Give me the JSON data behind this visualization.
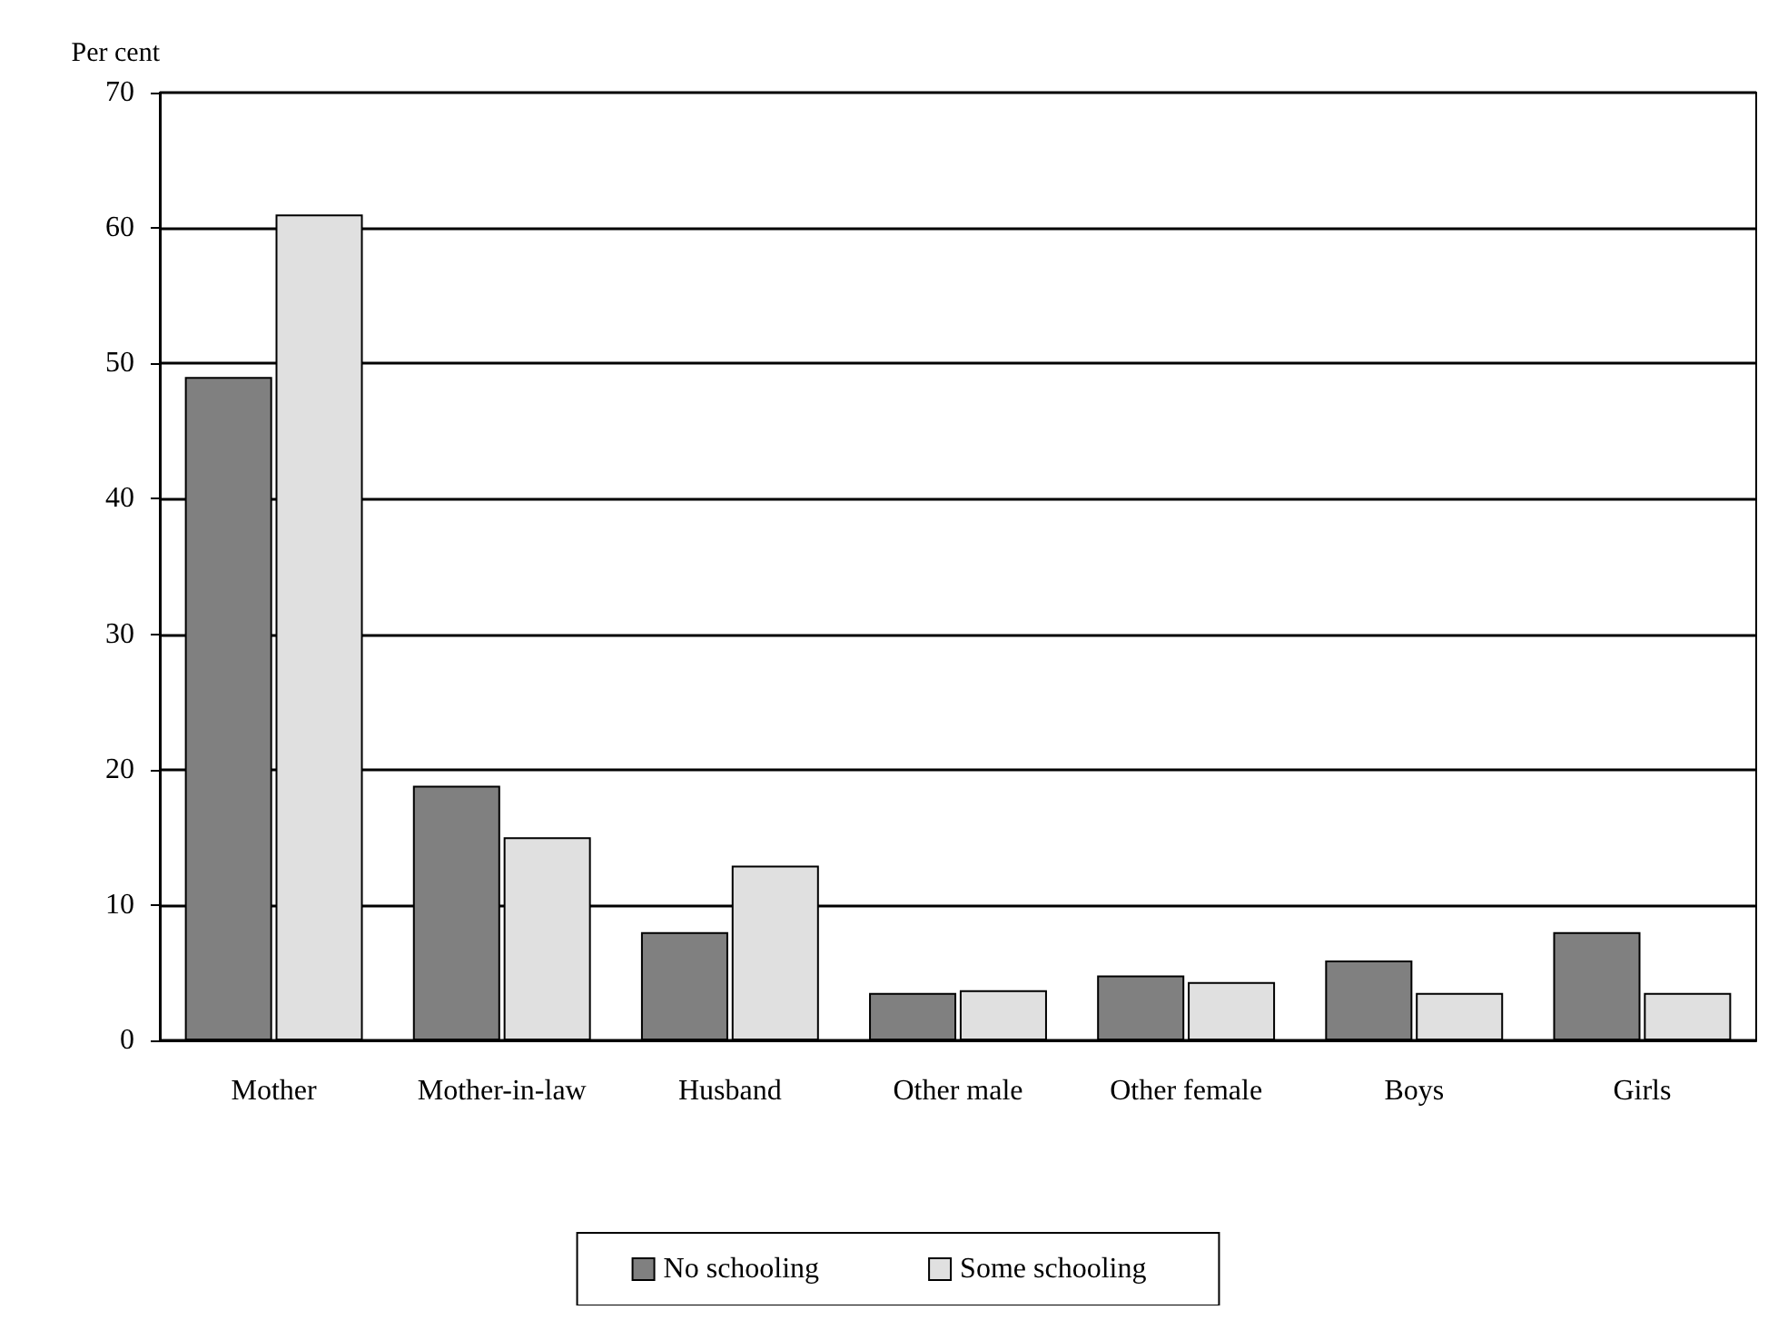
{
  "chart_data": {
    "type": "bar",
    "ylabel": "Per cent",
    "categories": [
      "Mother",
      "Mother-in-law",
      "Husband",
      "Other male",
      "Other female",
      "Boys",
      "Girls"
    ],
    "series": [
      {
        "name": "No schooling",
        "color": "#808080",
        "values": [
          49,
          18.8,
          8,
          3.5,
          4.8,
          5.9,
          8
        ]
      },
      {
        "name": "Some schooling",
        "color": "#e0e0e0",
        "values": [
          61,
          15,
          12.9,
          3.7,
          4.3,
          3.5,
          3.5
        ]
      }
    ],
    "ylim": [
      0,
      70
    ],
    "yticks": [
      0,
      10,
      20,
      30,
      40,
      50,
      60,
      70
    ],
    "grid": "y",
    "legend": "bottom"
  }
}
